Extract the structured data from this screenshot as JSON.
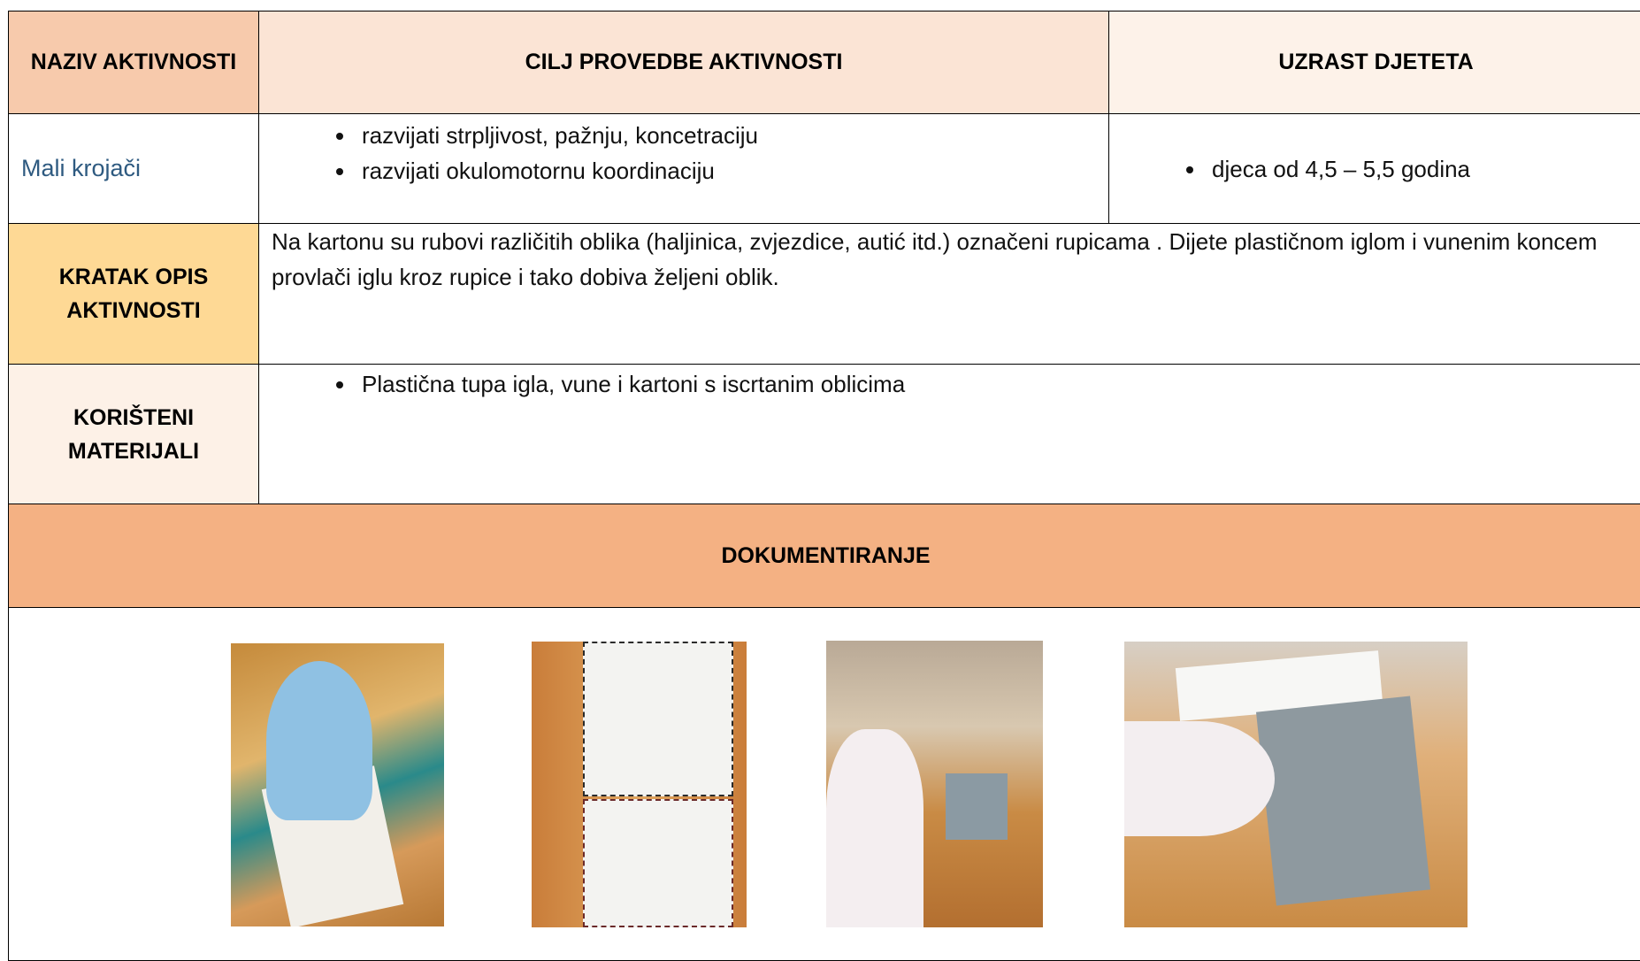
{
  "table": {
    "header": [
      "NAZIV AKTIVNOSTI",
      "CILJ PROVEDBE AKTIVNOSTI",
      "UZRAST DJETETA"
    ],
    "activity_name": "Mali krojači",
    "goals": [
      "razvijati strpljivost, pažnju, koncetraciju",
      "razvijati okulomotornu koordinaciju"
    ],
    "age": [
      "djeca od 4,5 – 5,5 godina"
    ],
    "description_label": "KRATAK OPIS AKTIVNOSTI",
    "description": "Na kartonu su rubovi različitih oblika (haljinica, zvjezdice, autić itd.) označeni rupicama . Dijete plastičnom iglom i vunenim koncem provlači iglu kroz rupice i tako dobiva željeni oblik.",
    "materials_label": "KORIŠTENI MATERIJALI",
    "materials": [
      "Plastična tupa igla,  vune i kartoni s iscrtanim  oblicima"
    ],
    "documentation_label": "DOKUMENTIRANJE"
  }
}
